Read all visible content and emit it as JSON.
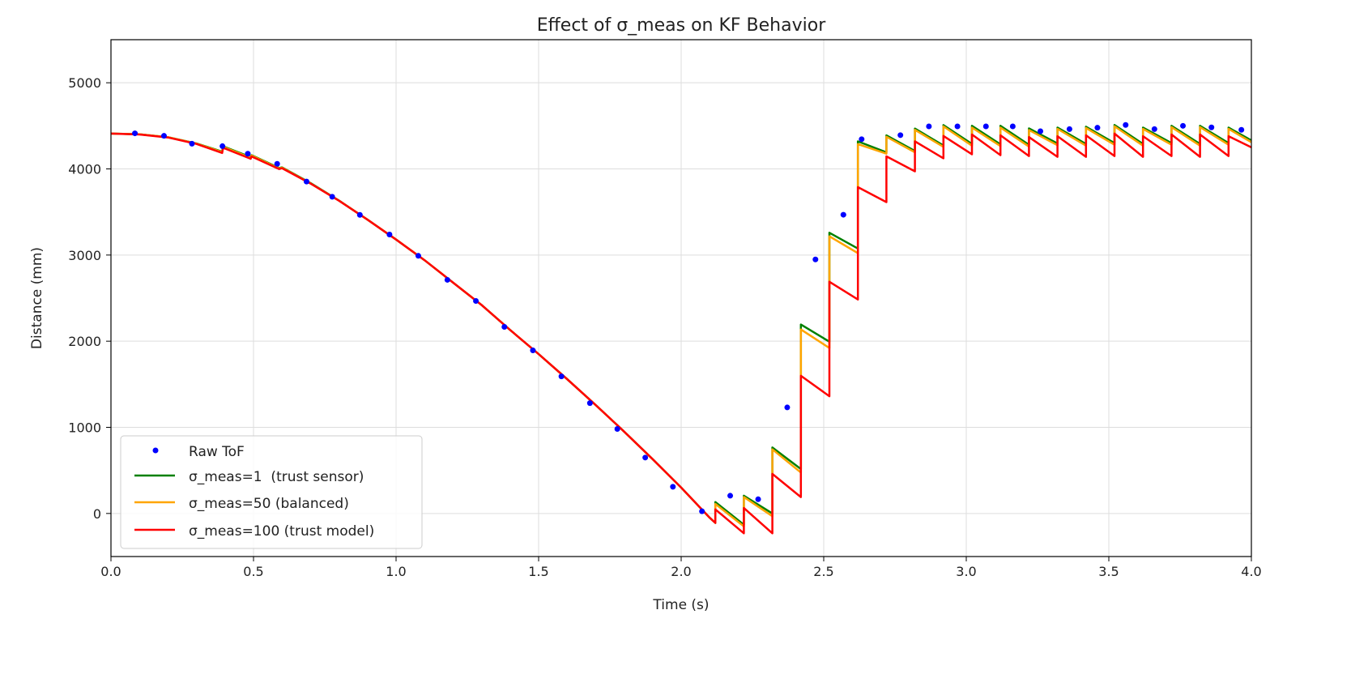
{
  "chart_data": {
    "type": "line",
    "title": "Effect of σ_meas on KF Behavior",
    "xlabel": "Time (s)",
    "ylabel": "Distance (mm)",
    "xlim": [
      0,
      4.0
    ],
    "ylim": [
      -500,
      5500
    ],
    "xticks": [
      "0.0",
      "0.5",
      "1.0",
      "1.5",
      "2.0",
      "2.5",
      "3.0",
      "3.5",
      "4.0"
    ],
    "xtick_values": [
      0,
      0.5,
      1.0,
      1.5,
      2.0,
      2.5,
      3.0,
      3.5,
      4.0
    ],
    "yticks": [
      "0",
      "1000",
      "2000",
      "3000",
      "4000",
      "5000"
    ],
    "ytick_values": [
      0,
      1000,
      2000,
      3000,
      4000,
      5000
    ],
    "grid": true,
    "legend_position": "lower-left",
    "scatter": {
      "name": "Raw ToF",
      "color": "#0000ff",
      "points": [
        [
          0.084,
          4413
        ],
        [
          0.186,
          4384
        ],
        [
          0.284,
          4293
        ],
        [
          0.391,
          4264
        ],
        [
          0.48,
          4176
        ],
        [
          0.583,
          4059
        ],
        [
          0.686,
          3853
        ],
        [
          0.776,
          3677
        ],
        [
          0.873,
          3466
        ],
        [
          0.977,
          3238
        ],
        [
          1.078,
          2991
        ],
        [
          1.18,
          2712
        ],
        [
          1.28,
          2467
        ],
        [
          1.38,
          2166
        ],
        [
          1.48,
          1893
        ],
        [
          1.58,
          1591
        ],
        [
          1.68,
          1281
        ],
        [
          1.776,
          981
        ],
        [
          1.874,
          649
        ],
        [
          1.971,
          310
        ],
        [
          2.073,
          25
        ],
        [
          2.172,
          206
        ],
        [
          2.27,
          165
        ],
        [
          2.372,
          1231
        ],
        [
          2.471,
          2949
        ],
        [
          2.569,
          3468
        ],
        [
          2.633,
          4345
        ],
        [
          2.769,
          4392
        ],
        [
          2.869,
          4494
        ],
        [
          2.969,
          4494
        ],
        [
          3.069,
          4494
        ],
        [
          3.163,
          4494
        ],
        [
          3.26,
          4437
        ],
        [
          3.362,
          4462
        ],
        [
          3.46,
          4478
        ],
        [
          3.559,
          4510
        ],
        [
          3.66,
          4462
        ],
        [
          3.76,
          4500
        ],
        [
          3.86,
          4482
        ],
        [
          3.965,
          4454
        ]
      ]
    },
    "series": [
      {
        "name": "σ_meas=1  (trust sensor)",
        "color": "#008000",
        "points": [
          [
            0,
            4410
          ],
          [
            0.1,
            4402
          ],
          [
            0.2,
            4368
          ],
          [
            0.3,
            4295
          ],
          [
            0.39,
            4200
          ],
          [
            0.393,
            4262
          ],
          [
            0.49,
            4135
          ],
          [
            0.493,
            4160
          ],
          [
            0.59,
            4010
          ],
          [
            0.6,
            4018
          ],
          [
            0.7,
            3835
          ],
          [
            0.8,
            3632
          ],
          [
            0.9,
            3410
          ],
          [
            1.0,
            3180
          ],
          [
            1.1,
            2940
          ],
          [
            1.2,
            2680
          ],
          [
            1.3,
            2420
          ],
          [
            1.4,
            2130
          ],
          [
            1.5,
            1850
          ],
          [
            1.6,
            1560
          ],
          [
            1.7,
            1260
          ],
          [
            1.8,
            950
          ],
          [
            1.9,
            630
          ],
          [
            2.0,
            300
          ],
          [
            2.1,
            -50
          ],
          [
            2.12,
            -110
          ],
          [
            2.12,
            133
          ],
          [
            2.22,
            -130
          ],
          [
            2.22,
            206
          ],
          [
            2.32,
            0
          ],
          [
            2.32,
            766
          ],
          [
            2.42,
            516
          ],
          [
            2.42,
            2193
          ],
          [
            2.52,
            1994
          ],
          [
            2.52,
            3259
          ],
          [
            2.62,
            3076
          ],
          [
            2.62,
            4320
          ],
          [
            2.72,
            4193
          ],
          [
            2.72,
            4389
          ],
          [
            2.82,
            4209
          ],
          [
            2.82,
            4468
          ],
          [
            2.92,
            4272
          ],
          [
            2.92,
            4509
          ],
          [
            3.02,
            4290
          ],
          [
            3.02,
            4500
          ],
          [
            3.12,
            4285
          ],
          [
            3.12,
            4500
          ],
          [
            3.22,
            4280
          ],
          [
            3.22,
            4470
          ],
          [
            3.32,
            4295
          ],
          [
            3.32,
            4480
          ],
          [
            3.42,
            4290
          ],
          [
            3.42,
            4490
          ],
          [
            3.52,
            4300
          ],
          [
            3.52,
            4510
          ],
          [
            3.62,
            4290
          ],
          [
            3.62,
            4480
          ],
          [
            3.72,
            4300
          ],
          [
            3.72,
            4500
          ],
          [
            3.82,
            4290
          ],
          [
            3.82,
            4500
          ],
          [
            3.92,
            4300
          ],
          [
            3.92,
            4480
          ],
          [
            4.0,
            4330
          ]
        ]
      },
      {
        "name": "σ_meas=50 (balanced)",
        "color": "#ffa500",
        "points": [
          [
            0,
            4410
          ],
          [
            0.1,
            4402
          ],
          [
            0.2,
            4368
          ],
          [
            0.3,
            4293
          ],
          [
            0.39,
            4195
          ],
          [
            0.393,
            4258
          ],
          [
            0.49,
            4128
          ],
          [
            0.493,
            4155
          ],
          [
            0.59,
            4005
          ],
          [
            0.6,
            4014
          ],
          [
            0.7,
            3832
          ],
          [
            0.8,
            3631
          ],
          [
            0.9,
            3410
          ],
          [
            1.0,
            3180
          ],
          [
            1.1,
            2940
          ],
          [
            1.2,
            2680
          ],
          [
            1.3,
            2420
          ],
          [
            1.4,
            2130
          ],
          [
            1.5,
            1850
          ],
          [
            1.6,
            1560
          ],
          [
            1.7,
            1260
          ],
          [
            1.8,
            950
          ],
          [
            1.9,
            630
          ],
          [
            2.0,
            300
          ],
          [
            2.1,
            -50
          ],
          [
            2.12,
            -110
          ],
          [
            2.12,
            110
          ],
          [
            2.22,
            -150
          ],
          [
            2.22,
            190
          ],
          [
            2.32,
            -32
          ],
          [
            2.32,
            744
          ],
          [
            2.42,
            475
          ],
          [
            2.42,
            2136
          ],
          [
            2.52,
            1921
          ],
          [
            2.52,
            3218
          ],
          [
            2.62,
            3022
          ],
          [
            2.62,
            4288
          ],
          [
            2.72,
            4177
          ],
          [
            2.72,
            4373
          ],
          [
            2.82,
            4193
          ],
          [
            2.82,
            4453
          ],
          [
            2.92,
            4256
          ],
          [
            2.92,
            4494
          ],
          [
            3.02,
            4270
          ],
          [
            3.02,
            4480
          ],
          [
            3.12,
            4265
          ],
          [
            3.12,
            4480
          ],
          [
            3.22,
            4260
          ],
          [
            3.22,
            4450
          ],
          [
            3.32,
            4275
          ],
          [
            3.32,
            4465
          ],
          [
            3.42,
            4270
          ],
          [
            3.42,
            4475
          ],
          [
            3.52,
            4280
          ],
          [
            3.52,
            4495
          ],
          [
            3.62,
            4270
          ],
          [
            3.62,
            4465
          ],
          [
            3.72,
            4280
          ],
          [
            3.72,
            4485
          ],
          [
            3.82,
            4270
          ],
          [
            3.82,
            4485
          ],
          [
            3.92,
            4280
          ],
          [
            3.92,
            4465
          ],
          [
            4.0,
            4310
          ]
        ]
      },
      {
        "name": "σ_meas=100 (trust model)",
        "color": "#ff0000",
        "points": [
          [
            0,
            4410
          ],
          [
            0.1,
            4400
          ],
          [
            0.2,
            4365
          ],
          [
            0.3,
            4290
          ],
          [
            0.39,
            4185
          ],
          [
            0.393,
            4245
          ],
          [
            0.49,
            4118
          ],
          [
            0.493,
            4145
          ],
          [
            0.59,
            3998
          ],
          [
            0.6,
            4008
          ],
          [
            0.7,
            3830
          ],
          [
            0.8,
            3630
          ],
          [
            0.9,
            3410
          ],
          [
            1.0,
            3180
          ],
          [
            1.1,
            2940
          ],
          [
            1.2,
            2680
          ],
          [
            1.3,
            2420
          ],
          [
            1.4,
            2130
          ],
          [
            1.5,
            1850
          ],
          [
            1.6,
            1560
          ],
          [
            1.7,
            1260
          ],
          [
            1.8,
            950
          ],
          [
            1.9,
            630
          ],
          [
            2.0,
            300
          ],
          [
            2.1,
            -50
          ],
          [
            2.12,
            -110
          ],
          [
            2.12,
            47
          ],
          [
            2.22,
            -230
          ],
          [
            2.22,
            63
          ],
          [
            2.32,
            -230
          ],
          [
            2.32,
            459
          ],
          [
            2.42,
            190
          ],
          [
            2.42,
            1598
          ],
          [
            2.52,
            1361
          ],
          [
            2.52,
            2690
          ],
          [
            2.62,
            2484
          ],
          [
            2.62,
            3788
          ],
          [
            2.72,
            3614
          ],
          [
            2.72,
            4146
          ],
          [
            2.82,
            3972
          ],
          [
            2.82,
            4320
          ],
          [
            2.92,
            4123
          ],
          [
            2.92,
            4383
          ],
          [
            3.02,
            4170
          ],
          [
            3.02,
            4400
          ],
          [
            3.12,
            4160
          ],
          [
            3.12,
            4390
          ],
          [
            3.22,
            4150
          ],
          [
            3.22,
            4370
          ],
          [
            3.32,
            4140
          ],
          [
            3.32,
            4380
          ],
          [
            3.42,
            4140
          ],
          [
            3.42,
            4390
          ],
          [
            3.52,
            4150
          ],
          [
            3.52,
            4410
          ],
          [
            3.62,
            4140
          ],
          [
            3.62,
            4380
          ],
          [
            3.72,
            4150
          ],
          [
            3.72,
            4400
          ],
          [
            3.82,
            4140
          ],
          [
            3.82,
            4400
          ],
          [
            3.92,
            4150
          ],
          [
            3.92,
            4380
          ],
          [
            4.0,
            4250
          ]
        ]
      }
    ]
  }
}
